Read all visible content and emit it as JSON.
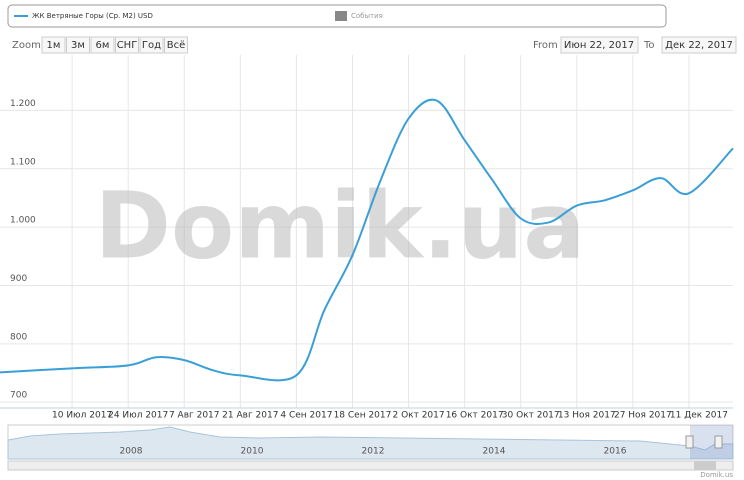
{
  "chart_data": {
    "type": "line",
    "x": [
      "2017-06-22",
      "2017-07-10",
      "2017-07-24",
      "2017-07-31",
      "2017-08-07",
      "2017-08-14",
      "2017-08-21",
      "2017-09-04",
      "2017-09-11",
      "2017-09-18",
      "2017-09-25",
      "2017-10-02",
      "2017-10-09",
      "2017-10-16",
      "2017-10-23",
      "2017-10-30",
      "2017-11-06",
      "2017-11-13",
      "2017-11-20",
      "2017-11-27",
      "2017-12-04",
      "2017-12-11",
      "2017-12-22"
    ],
    "series": [
      {
        "name": "ЖК Ветряные Горы (Ср. М2) USD",
        "color": "#3a9fd6",
        "values": [
          751,
          758,
          763,
          777,
          772,
          755,
          746,
          746,
          858,
          952,
          1080,
          1186,
          1217,
          1149,
          1080,
          1015,
          1008,
          1037,
          1046,
          1063,
          1084,
          1058,
          1135
        ]
      }
    ],
    "xlim": [
      "2017-06-22",
      "2017-12-22"
    ],
    "xticks": [
      {
        "value": "2017-07-10",
        "label": "10 Июл 2017"
      },
      {
        "value": "2017-07-24",
        "label": "24 Июл 2017"
      },
      {
        "value": "2017-08-07",
        "label": "7 Авг 2017"
      },
      {
        "value": "2017-08-21",
        "label": "21 Авг 2017"
      },
      {
        "value": "2017-09-04",
        "label": "4 Сен 2017"
      },
      {
        "value": "2017-09-18",
        "label": "18 Сен 2017"
      },
      {
        "value": "2017-10-02",
        "label": "2 Окт 2017"
      },
      {
        "value": "2017-10-16",
        "label": "16 Окт 2017"
      },
      {
        "value": "2017-10-30",
        "label": "30 Окт 2017"
      },
      {
        "value": "2017-11-13",
        "label": "13 Ноя 2017"
      },
      {
        "value": "2017-11-27",
        "label": "27 Ноя 2017"
      },
      {
        "value": "2017-12-11",
        "label": "11 Дек 2017"
      }
    ],
    "ylim": [
      690,
      1295
    ],
    "yticks": [
      700,
      800,
      900,
      {
        "value": 1000,
        "label": "1.000"
      },
      {
        "value": 1100,
        "label": "1.100"
      },
      {
        "value": 1200,
        "label": "1.200"
      }
    ],
    "grid": true,
    "events_label": "События"
  },
  "range_selector": {
    "zoom_label": "Zoom",
    "buttons": [
      "1м",
      "3м",
      "6м",
      "СНГ",
      "Год",
      "Всё"
    ],
    "from_label": "From",
    "from": "Июн 22, 2017",
    "to_label": "To",
    "to": "Дек 22, 2017"
  },
  "watermark": "Domik.ua",
  "navigator": {
    "labels": [
      "2008",
      "2010",
      "2012",
      "2014",
      "2016"
    ]
  },
  "credits": "Domik.us"
}
